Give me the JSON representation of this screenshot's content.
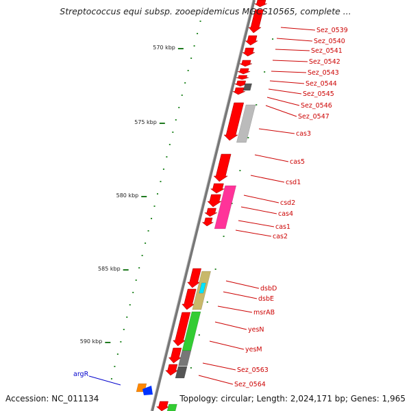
{
  "title": "Streptococcus equi subsp. zooepidemicus MGCS10565, complete ...",
  "footer": {
    "accession": "Accession: NC_011134",
    "summary": "Topology: circular; Length: 2,024,171 bp; Genes: 1,965"
  },
  "colors": {
    "cds": "#ff0000",
    "other": "#555555",
    "label": "#cc0000",
    "axis": "#999999",
    "tick": "#2a8a2a",
    "highlight_label": "#0000cc"
  },
  "scale_labels": [
    "570 kbp",
    "575 kbp",
    "580 kbp",
    "585 kbp",
    "590 kbp"
  ],
  "gene_labels": [
    "Sez_0539",
    "Sez_0540",
    "Sez_0541",
    "Sez_0542",
    "Sez_0543",
    "Sez_0544",
    "Sez_0545",
    "Sez_0546",
    "Sez_0547",
    "cas3",
    "cas5",
    "csd1",
    "csd2",
    "cas4",
    "cas1",
    "cas2",
    "dsbD",
    "dsbE",
    "msrAB",
    "yesN",
    "yesM",
    "Sez_0563",
    "Sez_0564"
  ],
  "highlight_label": "argR"
}
